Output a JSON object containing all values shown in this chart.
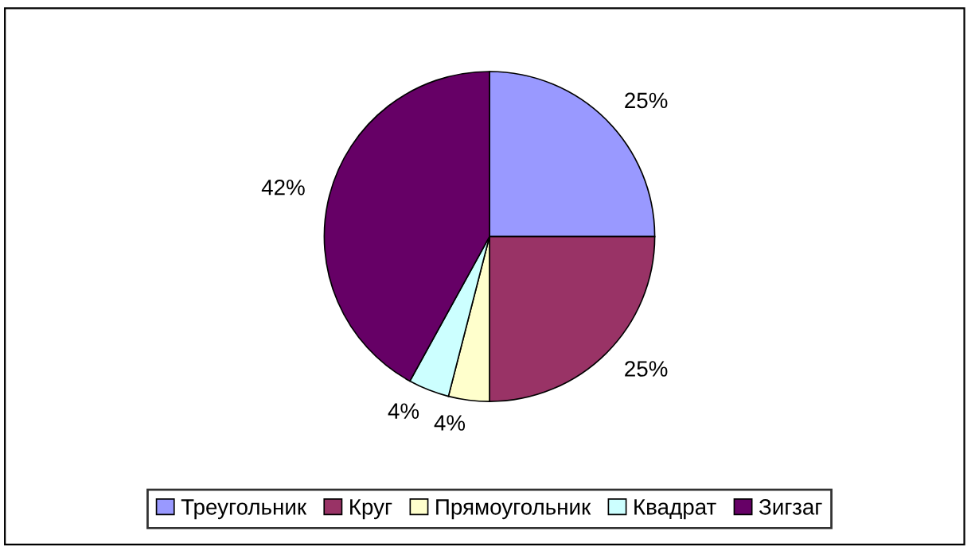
{
  "chart_data": {
    "type": "pie",
    "categories": [
      "Треугольник",
      "Круг",
      "Прямоугольник",
      "Квадрат",
      "Зигзаг"
    ],
    "values": [
      25,
      25,
      4,
      4,
      42
    ],
    "value_labels": [
      "25%",
      "25%",
      "4%",
      "4%",
      "42%"
    ],
    "colors": [
      "#9999ff",
      "#993366",
      "#ffffcc",
      "#ccffff",
      "#660066"
    ],
    "legend": "bottom"
  }
}
